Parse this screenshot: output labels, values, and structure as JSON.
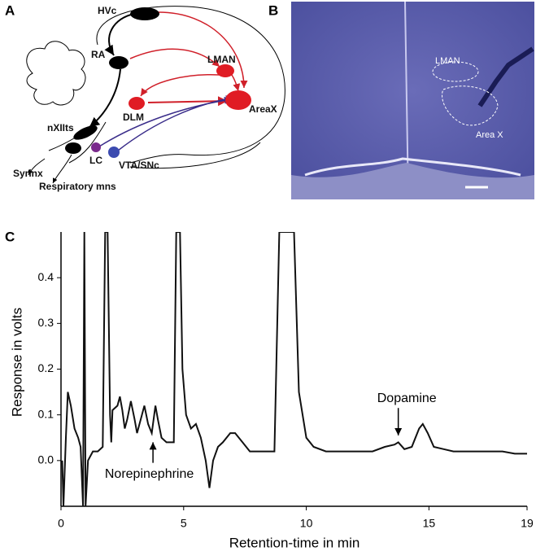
{
  "panels": {
    "a": "A",
    "b": "B",
    "c": "C"
  },
  "diagram": {
    "nodes": [
      "HVc",
      "RA",
      "LMAN",
      "DLM",
      "AreaX",
      "nXIIts",
      "LC",
      "VTA/SNc",
      "Syrinx",
      "Respiratory mns"
    ]
  },
  "image": {
    "labels": [
      "LMAN",
      "Area X"
    ]
  },
  "chart_data": {
    "type": "line",
    "x_label": "Retention-time in min",
    "y_label": "Response in volts",
    "annotations": [
      "Dopamine",
      "Norepinephrine"
    ],
    "color": "#111111",
    "x": [
      0.05,
      0.1,
      0.2,
      0.28,
      0.4,
      0.55,
      0.7,
      0.8,
      0.9,
      0.95,
      1.0,
      1.1,
      1.3,
      1.5,
      1.7,
      1.8,
      1.9,
      2.0,
      2.05,
      2.1,
      2.3,
      2.4,
      2.5,
      2.6,
      2.7,
      2.85,
      3.0,
      3.1,
      3.3,
      3.4,
      3.55,
      3.7,
      3.85,
      3.95,
      4.1,
      4.3,
      4.6,
      4.7,
      4.85,
      4.95,
      5.1,
      5.3,
      5.5,
      5.7,
      5.9,
      6.05,
      6.2,
      6.4,
      6.6,
      6.9,
      7.1,
      7.4,
      7.7,
      8.2,
      8.7,
      8.9,
      9.5,
      9.7,
      10.0,
      10.3,
      10.8,
      11.5,
      12.2,
      12.7,
      13.2,
      13.6,
      13.75,
      14.0,
      14.3,
      14.6,
      14.75,
      14.95,
      15.2,
      15.6,
      16.0,
      17.0,
      18.0,
      18.5,
      19.0
    ],
    "y": [
      0.0,
      -0.1,
      0.05,
      0.15,
      0.12,
      0.07,
      0.05,
      0.03,
      -0.1,
      0.5,
      -0.1,
      0.0,
      0.02,
      0.02,
      0.03,
      0.5,
      0.5,
      0.1,
      0.04,
      0.11,
      0.12,
      0.14,
      0.11,
      0.07,
      0.09,
      0.13,
      0.09,
      0.06,
      0.1,
      0.12,
      0.08,
      0.06,
      0.12,
      0.09,
      0.05,
      0.04,
      0.04,
      0.5,
      0.5,
      0.2,
      0.1,
      0.07,
      0.08,
      0.05,
      0.0,
      -0.06,
      0.0,
      0.03,
      0.04,
      0.06,
      0.06,
      0.04,
      0.02,
      0.02,
      0.02,
      0.5,
      0.5,
      0.15,
      0.05,
      0.03,
      0.02,
      0.02,
      0.02,
      0.02,
      0.03,
      0.035,
      0.04,
      0.025,
      0.03,
      0.07,
      0.08,
      0.06,
      0.03,
      0.025,
      0.02,
      0.02,
      0.02,
      0.015,
      0.015
    ],
    "xlim": [
      0,
      19
    ],
    "xticks": [
      0,
      5,
      10,
      15,
      19
    ],
    "ylim": [
      -0.1,
      0.5
    ],
    "yticks": [
      {
        "value": 0,
        "label": "0.0"
      },
      0.1,
      0.2,
      0.3,
      0.4
    ]
  }
}
